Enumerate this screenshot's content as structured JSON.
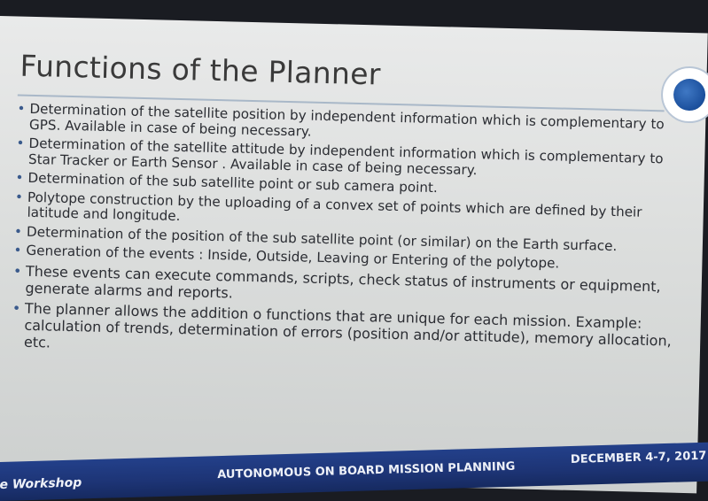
{
  "slide": {
    "title": "Functions of the Planner",
    "bullets": [
      "Determination of the satellite position by independent information which is complementary to GPS.  Available in case of being necessary.",
      "Determination of the satellite attitude by independent information which is complementary to Star Tracker or Earth Sensor . Available in case of being necessary.",
      "Determination of the sub satellite point or sub camera point.",
      "Polytope construction by the uploading of a convex set of points which are defined by their latitude and longitude.",
      "Determination of the position of the sub satellite point (or similar) on the Earth surface.",
      "Generation of the events : Inside, Outside, Leaving or Entering of the polytope.",
      "These events can execute commands, scripts, check status of instruments or equipment, generate alarms and reports.",
      "The planner allows the addition o functions that are unique for each mission. Example: calculation of trends, determination of errors (position and/or attitude), memory allocation, etc."
    ],
    "bullet_symbol": "•"
  },
  "footer": {
    "left": "e Workshop",
    "center": "AUTONOMOUS ON BOARD MISSION PLANNING",
    "right": "DECEMBER 4-7, 2017"
  }
}
